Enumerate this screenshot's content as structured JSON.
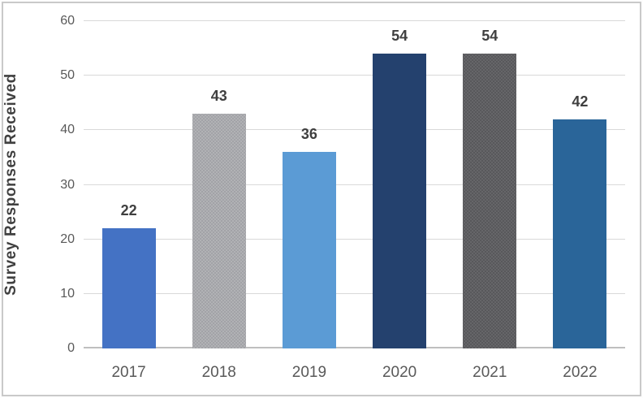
{
  "chart_data": {
    "type": "bar",
    "title": "",
    "xlabel": "",
    "ylabel": "Survey Responses Received",
    "categories": [
      "2017",
      "2018",
      "2019",
      "2020",
      "2021",
      "2022"
    ],
    "values": [
      22,
      43,
      36,
      54,
      54,
      42
    ],
    "data_labels": [
      "22",
      "43",
      "36",
      "54",
      "54",
      "42"
    ],
    "ylim": [
      0,
      60
    ],
    "yticks": [
      0,
      10,
      20,
      30,
      40,
      50,
      60
    ],
    "grid": "horizontal-only",
    "legend": "none",
    "bar_styles": [
      {
        "color": "#4472C4",
        "textured": false,
        "dot_color": null
      },
      {
        "color": "#B1B2B5",
        "textured": true,
        "dot_color": "#94959A"
      },
      {
        "color": "#5B9BD5",
        "textured": false,
        "dot_color": null
      },
      {
        "color": "#24416E",
        "textured": false,
        "dot_color": null
      },
      {
        "color": "#666669",
        "textured": true,
        "dot_color": "#4B4B4F"
      },
      {
        "color": "#2A6599",
        "textured": false,
        "dot_color": null
      }
    ]
  },
  "colors": {
    "gridline": "#D9D9D9",
    "axis_line": "#BFBFBF",
    "tick_label": "#595959",
    "data_label": "#3F3F3F",
    "axis_title": "#404040",
    "frame_border": "#C9C9C9",
    "background": "#FFFFFF"
  }
}
